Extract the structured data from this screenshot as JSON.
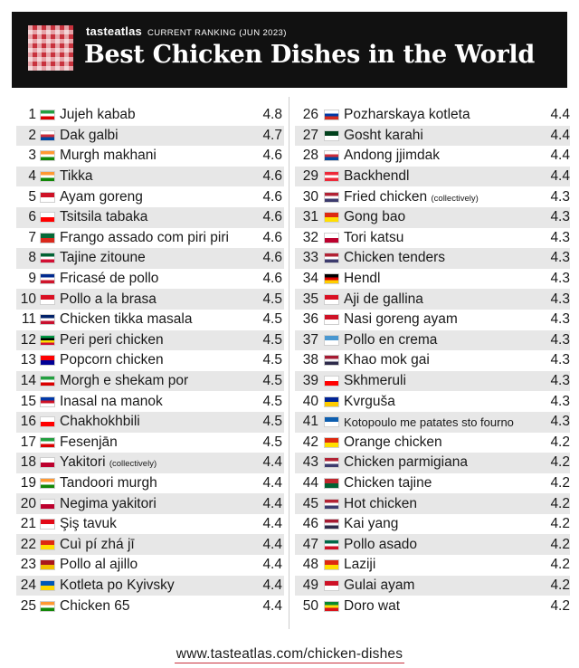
{
  "header": {
    "brand_bold": "tasteatlas",
    "brand_sub": "CURRENT RANKING (JUN 2023)",
    "title": "Best Chicken Dishes in the World"
  },
  "left": [
    {
      "rank": "1",
      "name": "Jujeh kabab",
      "note": "",
      "score": "4.8",
      "flag": "iran-flag-icon",
      "colors": [
        "#239f40",
        "#ffffff",
        "#da0000"
      ]
    },
    {
      "rank": "2",
      "name": "Dak galbi",
      "note": "",
      "score": "4.7",
      "flag": "south-korea-flag-icon",
      "colors": [
        "#ffffff",
        "#cd2e3a",
        "#0047a0"
      ]
    },
    {
      "rank": "3",
      "name": "Murgh makhani",
      "note": "",
      "score": "4.6",
      "flag": "india-flag-icon",
      "colors": [
        "#ff9933",
        "#ffffff",
        "#138808"
      ]
    },
    {
      "rank": "4",
      "name": "Tikka",
      "note": "",
      "score": "4.6",
      "flag": "india-flag-icon",
      "colors": [
        "#ff9933",
        "#ffffff",
        "#138808"
      ]
    },
    {
      "rank": "5",
      "name": "Ayam goreng",
      "note": "",
      "score": "4.6",
      "flag": "indonesia-flag-icon",
      "colors": [
        "#ce1126",
        "#ffffff"
      ]
    },
    {
      "rank": "6",
      "name": "Tsitsila tabaka",
      "note": "",
      "score": "4.6",
      "flag": "georgia-flag-icon",
      "colors": [
        "#ffffff",
        "#ff0000"
      ]
    },
    {
      "rank": "7",
      "name": "Frango assado com piri piri",
      "note": "",
      "score": "4.6",
      "flag": "portugal-flag-icon",
      "colors": [
        "#046a38",
        "#da291c"
      ]
    },
    {
      "rank": "8",
      "name": "Tajine zitoune",
      "note": "",
      "score": "4.6",
      "flag": "algeria-flag-icon",
      "colors": [
        "#006233",
        "#ffffff",
        "#d21034"
      ]
    },
    {
      "rank": "9",
      "name": "Fricasé de pollo",
      "note": "",
      "score": "4.6",
      "flag": "cuba-flag-icon",
      "colors": [
        "#002a8f",
        "#ffffff",
        "#cf142b"
      ]
    },
    {
      "rank": "10",
      "name": "Pollo a la brasa",
      "note": "",
      "score": "4.5",
      "flag": "peru-flag-icon",
      "colors": [
        "#d91023",
        "#ffffff"
      ]
    },
    {
      "rank": "11",
      "name": "Chicken tikka masala",
      "note": "",
      "score": "4.5",
      "flag": "uk-flag-icon",
      "colors": [
        "#012169",
        "#ffffff",
        "#c8102e"
      ]
    },
    {
      "rank": "12",
      "name": "Peri peri chicken",
      "note": "",
      "score": "4.5",
      "flag": "mozambique-flag-icon",
      "colors": [
        "#009a44",
        "#000000",
        "#fce100",
        "#d21034"
      ]
    },
    {
      "rank": "13",
      "name": "Popcorn chicken",
      "note": "",
      "score": "4.5",
      "flag": "taiwan-flag-icon",
      "colors": [
        "#fe0000",
        "#000095"
      ]
    },
    {
      "rank": "14",
      "name": "Morgh e shekam por",
      "note": "",
      "score": "4.5",
      "flag": "iran-flag-icon",
      "colors": [
        "#239f40",
        "#ffffff",
        "#da0000"
      ]
    },
    {
      "rank": "15",
      "name": "Inasal na manok",
      "note": "",
      "score": "4.5",
      "flag": "philippines-flag-icon",
      "colors": [
        "#0038a8",
        "#ce1126",
        "#ffffff"
      ]
    },
    {
      "rank": "16",
      "name": "Chakhokhbili",
      "note": "",
      "score": "4.5",
      "flag": "georgia-flag-icon",
      "colors": [
        "#ffffff",
        "#ff0000"
      ]
    },
    {
      "rank": "17",
      "name": "Fesenjān",
      "note": "",
      "score": "4.5",
      "flag": "iran-flag-icon",
      "colors": [
        "#239f40",
        "#ffffff",
        "#da0000"
      ]
    },
    {
      "rank": "18",
      "name": "Yakitori",
      "note": "(collectively)",
      "score": "4.4",
      "flag": "japan-flag-icon",
      "colors": [
        "#ffffff",
        "#bc002d"
      ]
    },
    {
      "rank": "19",
      "name": "Tandoori murgh",
      "note": "",
      "score": "4.4",
      "flag": "india-flag-icon",
      "colors": [
        "#ff9933",
        "#ffffff",
        "#138808"
      ]
    },
    {
      "rank": "20",
      "name": "Negima yakitori",
      "note": "",
      "score": "4.4",
      "flag": "japan-flag-icon",
      "colors": [
        "#ffffff",
        "#bc002d"
      ]
    },
    {
      "rank": "21",
      "name": "Şiş tavuk",
      "note": "",
      "score": "4.4",
      "flag": "turkey-flag-icon",
      "colors": [
        "#e30a17",
        "#ffffff"
      ]
    },
    {
      "rank": "22",
      "name": "Cuì pí zhá jī",
      "note": "",
      "score": "4.4",
      "flag": "china-flag-icon",
      "colors": [
        "#de2910",
        "#ffde00"
      ]
    },
    {
      "rank": "23",
      "name": "Pollo al ajillo",
      "note": "",
      "score": "4.4",
      "flag": "spain-flag-icon",
      "colors": [
        "#aa151b",
        "#f1bf00"
      ]
    },
    {
      "rank": "24",
      "name": "Kotleta po Kyivsky",
      "note": "",
      "score": "4.4",
      "flag": "ukraine-flag-icon",
      "colors": [
        "#0057b7",
        "#ffd700"
      ]
    },
    {
      "rank": "25",
      "name": "Chicken 65",
      "note": "",
      "score": "4.4",
      "flag": "india-flag-icon",
      "colors": [
        "#ff9933",
        "#ffffff",
        "#138808"
      ]
    }
  ],
  "right": [
    {
      "rank": "26",
      "name": "Pozharskaya kotleta",
      "note": "",
      "score": "4.4",
      "flag": "russia-flag-icon",
      "colors": [
        "#ffffff",
        "#0039a6",
        "#d52b1e"
      ]
    },
    {
      "rank": "27",
      "name": "Gosht karahi",
      "note": "",
      "score": "4.4",
      "flag": "pakistan-flag-icon",
      "colors": [
        "#01411c",
        "#ffffff"
      ]
    },
    {
      "rank": "28",
      "name": "Andong jjimdak",
      "note": "",
      "score": "4.4",
      "flag": "south-korea-flag-icon",
      "colors": [
        "#ffffff",
        "#cd2e3a",
        "#0047a0"
      ]
    },
    {
      "rank": "29",
      "name": "Backhendl",
      "note": "",
      "score": "4.4",
      "flag": "austria-flag-icon",
      "colors": [
        "#ed2939",
        "#ffffff",
        "#ed2939"
      ]
    },
    {
      "rank": "30",
      "name": "Fried chicken",
      "note": "(collectively)",
      "score": "4.3",
      "flag": "usa-flag-icon",
      "colors": [
        "#b22234",
        "#ffffff",
        "#3c3b6e"
      ]
    },
    {
      "rank": "31",
      "name": "Gong bao",
      "note": "",
      "score": "4.3",
      "flag": "china-flag-icon",
      "colors": [
        "#de2910",
        "#ffde00"
      ]
    },
    {
      "rank": "32",
      "name": "Tori katsu",
      "note": "",
      "score": "4.3",
      "flag": "japan-flag-icon",
      "colors": [
        "#ffffff",
        "#bc002d"
      ]
    },
    {
      "rank": "33",
      "name": "Chicken tenders",
      "note": "",
      "score": "4.3",
      "flag": "usa-flag-icon",
      "colors": [
        "#b22234",
        "#ffffff",
        "#3c3b6e"
      ]
    },
    {
      "rank": "34",
      "name": "Hendl",
      "note": "",
      "score": "4.3",
      "flag": "germany-flag-icon",
      "colors": [
        "#000000",
        "#dd0000",
        "#ffce00"
      ]
    },
    {
      "rank": "35",
      "name": "Aji de gallina",
      "note": "",
      "score": "4.3",
      "flag": "peru-flag-icon",
      "colors": [
        "#d91023",
        "#ffffff"
      ]
    },
    {
      "rank": "36",
      "name": "Nasi goreng ayam",
      "note": "",
      "score": "4.3",
      "flag": "indonesia-flag-icon",
      "colors": [
        "#ce1126",
        "#ffffff"
      ]
    },
    {
      "rank": "37",
      "name": "Pollo en crema",
      "note": "",
      "score": "4.3",
      "flag": "guatemala-flag-icon",
      "colors": [
        "#4997d0",
        "#ffffff"
      ]
    },
    {
      "rank": "38",
      "name": "Khao mok gai",
      "note": "",
      "score": "4.3",
      "flag": "thailand-flag-icon",
      "colors": [
        "#a51931",
        "#f4f5f8",
        "#2d2a4a"
      ]
    },
    {
      "rank": "39",
      "name": "Skhmeruli",
      "note": "",
      "score": "4.3",
      "flag": "georgia-flag-icon",
      "colors": [
        "#ffffff",
        "#ff0000"
      ]
    },
    {
      "rank": "40",
      "name": "Kvrguša",
      "note": "",
      "score": "4.3",
      "flag": "bosnia-flag-icon",
      "colors": [
        "#002395",
        "#fecb00"
      ]
    },
    {
      "rank": "41",
      "name": "Kotopoulo me patates sto fourno",
      "note": "",
      "score": "4.3",
      "flag": "greece-flag-icon",
      "colors": [
        "#0d5eaf",
        "#ffffff"
      ],
      "small": true
    },
    {
      "rank": "42",
      "name": "Orange chicken",
      "note": "",
      "score": "4.2",
      "flag": "china-flag-icon",
      "colors": [
        "#de2910",
        "#ffde00"
      ]
    },
    {
      "rank": "43",
      "name": "Chicken parmigiana",
      "note": "",
      "score": "4.2",
      "flag": "usa-flag-icon",
      "colors": [
        "#b22234",
        "#ffffff",
        "#3c3b6e"
      ]
    },
    {
      "rank": "44",
      "name": "Chicken tajine",
      "note": "",
      "score": "4.2",
      "flag": "morocco-flag-icon",
      "colors": [
        "#c1272d",
        "#006233"
      ]
    },
    {
      "rank": "45",
      "name": "Hot chicken",
      "note": "",
      "score": "4.2",
      "flag": "usa-flag-icon",
      "colors": [
        "#b22234",
        "#ffffff",
        "#3c3b6e"
      ]
    },
    {
      "rank": "46",
      "name": "Kai yang",
      "note": "",
      "score": "4.2",
      "flag": "thailand-flag-icon",
      "colors": [
        "#a51931",
        "#f4f5f8",
        "#2d2a4a"
      ]
    },
    {
      "rank": "47",
      "name": "Pollo asado",
      "note": "",
      "score": "4.2",
      "flag": "mexico-flag-icon",
      "colors": [
        "#006847",
        "#ffffff",
        "#ce1126"
      ]
    },
    {
      "rank": "48",
      "name": "Laziji",
      "note": "",
      "score": "4.2",
      "flag": "china-flag-icon",
      "colors": [
        "#de2910",
        "#ffde00"
      ]
    },
    {
      "rank": "49",
      "name": "Gulai ayam",
      "note": "",
      "score": "4.2",
      "flag": "indonesia-flag-icon",
      "colors": [
        "#ce1126",
        "#ffffff"
      ]
    },
    {
      "rank": "50",
      "name": "Doro wat",
      "note": "",
      "score": "4.2",
      "flag": "ethiopia-flag-icon",
      "colors": [
        "#078930",
        "#fcdd09",
        "#da121a"
      ]
    }
  ],
  "footer": {
    "url": "www.tasteatlas.com/chicken-dishes"
  }
}
